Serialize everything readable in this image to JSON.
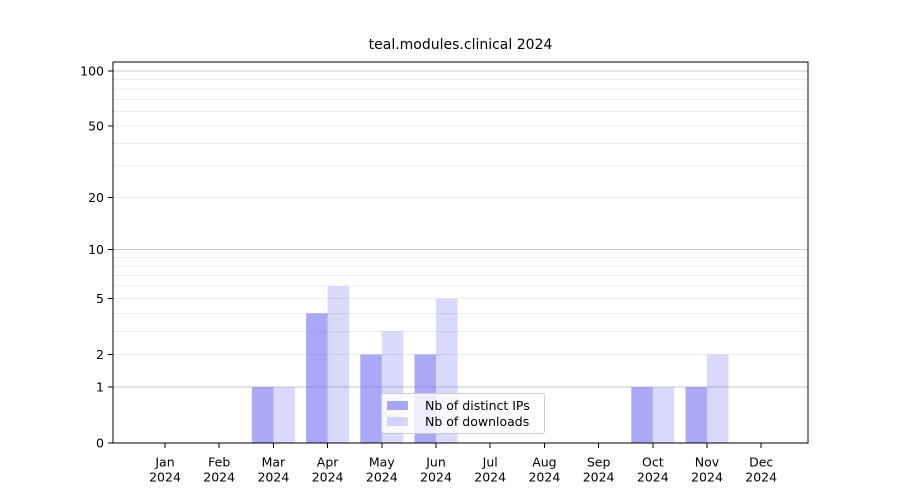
{
  "title": "teal.modules.clinical 2024",
  "chart_data": {
    "type": "bar",
    "title": "teal.modules.clinical 2024",
    "categories": [
      "Jan 2024",
      "Feb 2024",
      "Mar 2024",
      "Apr 2024",
      "May 2024",
      "Jun 2024",
      "Jul 2024",
      "Aug 2024",
      "Sep 2024",
      "Oct 2024",
      "Nov 2024",
      "Dec 2024"
    ],
    "series": [
      {
        "name": "Nb of distinct IPs",
        "color": "rgba(98,98,240,0.55)",
        "values": [
          0,
          0,
          1,
          4,
          2,
          2,
          0,
          0,
          0,
          1,
          1,
          0
        ]
      },
      {
        "name": "Nb of downloads",
        "color": "rgba(98,98,240,0.24)",
        "values": [
          0,
          0,
          1,
          6,
          3,
          5,
          0,
          0,
          0,
          1,
          2,
          0
        ]
      }
    ],
    "xlabel": "",
    "ylabel": "",
    "yscale": "log1p",
    "ylim": [
      0,
      112
    ],
    "yticks": [
      0,
      1,
      2,
      5,
      10,
      20,
      50,
      100
    ],
    "grid": {
      "major": [
        1,
        10,
        100
      ],
      "minor": [
        2,
        3,
        4,
        5,
        6,
        7,
        8,
        9,
        20,
        30,
        40,
        50,
        60,
        70,
        80,
        90
      ]
    },
    "legend": {
      "location": "lower center",
      "background": "rgba(255,255,255,0.8)",
      "border_color": "#cccccc"
    },
    "colors": {
      "axis": "#000000",
      "text": "#000000",
      "grid_major": "#c9c9c9",
      "grid_minor": "#ececec",
      "plot_background": "#ffffff"
    }
  }
}
